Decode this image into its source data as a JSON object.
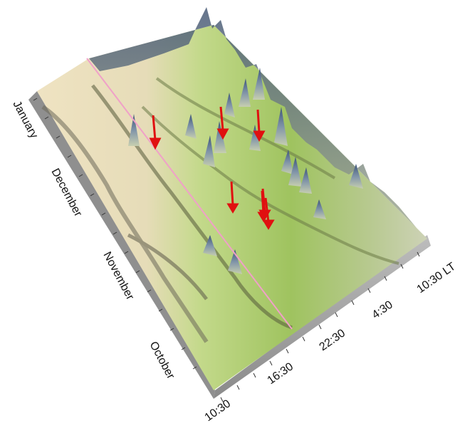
{
  "chart_data": {
    "type": "area",
    "title": "",
    "xlabel": "",
    "ylabel": "",
    "month_axis": {
      "tick_labels": [
        "January",
        "December",
        "November",
        "October"
      ]
    },
    "local_time_axis": {
      "tick_labels": [
        "10:30",
        "16:30",
        "22:30",
        "4:30",
        "10:30 LT"
      ]
    },
    "annotations": {
      "arrow_count": 7,
      "arrow_color": "#e01010",
      "terminator_line_color": "#f0a0c8"
    },
    "colors": {
      "low": "#f3ead0",
      "mid": "#b9d77a",
      "high": "#6f8fb0",
      "side_wall": "#a9a9a9"
    }
  }
}
